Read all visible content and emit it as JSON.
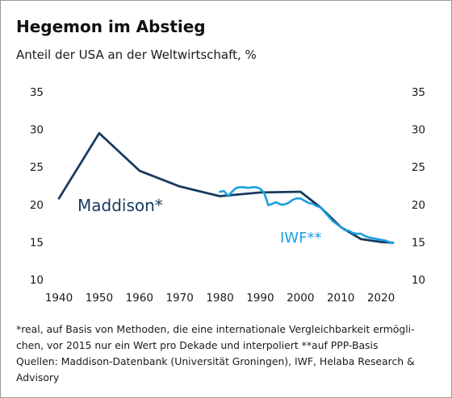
{
  "title": "Hegemon im Abstieg",
  "subtitle": "Anteil der USA an der Weltwirtschaft, %",
  "footnote": {
    "line1": "*real, auf Basis von Methoden, die eine internationale Vergleichbarkeit ermögli-",
    "line2": "chen, vor 2015 nur ein Wert pro Dekade und interpoliert **auf PPP-Basis",
    "line3": "Quellen: Maddison-Datenbank (Universität Groningen), IWF, Helaba Research &",
    "line4": "Advisory"
  },
  "chart_data": {
    "type": "line",
    "xlim": [
      1940,
      2020
    ],
    "x_ticks": [
      "1940",
      "1950",
      "1960",
      "1970",
      "1980",
      "1990",
      "2000",
      "2010",
      "2020"
    ],
    "ylim": [
      10,
      35
    ],
    "y_ticks_left": [
      "10",
      "15",
      "20",
      "25",
      "30",
      "35"
    ],
    "y_ticks_right": [
      "10",
      "15",
      "20",
      "25",
      "30",
      "35"
    ],
    "grid": false,
    "legend": "inline labels",
    "series": [
      {
        "name": "Maddison*",
        "color": "#173a5e",
        "points": [
          [
            1940,
            20.8
          ],
          [
            1950,
            29.5
          ],
          [
            1960,
            24.5
          ],
          [
            1970,
            22.4
          ],
          [
            1980,
            21.1
          ],
          [
            1990,
            21.6
          ],
          [
            2000,
            21.7
          ],
          [
            2005,
            19.6
          ],
          [
            2010,
            17.0
          ],
          [
            2015,
            15.4
          ],
          [
            2020,
            15.0
          ],
          [
            2023,
            14.9
          ]
        ]
      },
      {
        "name": "IWF**",
        "color": "#1a9fe0",
        "points": [
          [
            1980,
            21.7
          ],
          [
            1981,
            21.8
          ],
          [
            1982,
            21.1
          ],
          [
            1983,
            21.7
          ],
          [
            1984,
            22.2
          ],
          [
            1985,
            22.3
          ],
          [
            1986,
            22.3
          ],
          [
            1987,
            22.2
          ],
          [
            1988,
            22.3
          ],
          [
            1989,
            22.3
          ],
          [
            1990,
            22.1
          ],
          [
            1991,
            21.5
          ],
          [
            1992,
            19.9
          ],
          [
            1993,
            20.1
          ],
          [
            1994,
            20.3
          ],
          [
            1995,
            20.0
          ],
          [
            1996,
            20.0
          ],
          [
            1997,
            20.2
          ],
          [
            1998,
            20.6
          ],
          [
            1999,
            20.8
          ],
          [
            2000,
            20.8
          ],
          [
            2001,
            20.5
          ],
          [
            2002,
            20.2
          ],
          [
            2003,
            20.1
          ],
          [
            2004,
            19.8
          ],
          [
            2005,
            19.6
          ],
          [
            2006,
            19.0
          ],
          [
            2007,
            18.4
          ],
          [
            2008,
            17.8
          ],
          [
            2009,
            17.4
          ],
          [
            2010,
            17.0
          ],
          [
            2011,
            16.6
          ],
          [
            2012,
            16.5
          ],
          [
            2013,
            16.2
          ],
          [
            2014,
            16.1
          ],
          [
            2015,
            16.1
          ],
          [
            2016,
            15.8
          ],
          [
            2017,
            15.6
          ],
          [
            2018,
            15.5
          ],
          [
            2019,
            15.4
          ],
          [
            2020,
            15.3
          ],
          [
            2021,
            15.2
          ],
          [
            2022,
            15.0
          ],
          [
            2023,
            14.9
          ]
        ]
      }
    ]
  }
}
